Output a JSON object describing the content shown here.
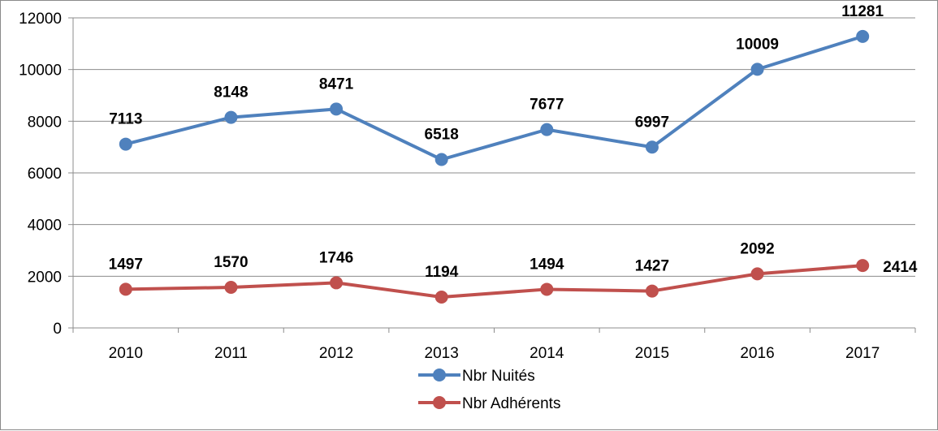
{
  "chart_data": {
    "type": "line",
    "categories": [
      "2010",
      "2011",
      "2012",
      "2013",
      "2014",
      "2015",
      "2016",
      "2017"
    ],
    "ylim": [
      0,
      12000
    ],
    "yticks": [
      0,
      2000,
      4000,
      6000,
      8000,
      10000,
      12000
    ],
    "grid": true,
    "legend_position": "bottom-center",
    "series": [
      {
        "name": "Nbr Nuités",
        "color": "#4f81bd",
        "values": [
          7113,
          8148,
          8471,
          6518,
          7677,
          6997,
          10009,
          11281
        ],
        "labels": [
          "7113",
          "8148",
          "8471",
          "6518",
          "7677",
          "6997",
          "10009",
          "11281"
        ]
      },
      {
        "name": "Nbr Adhérents",
        "color": "#c0504d",
        "values": [
          1497,
          1570,
          1746,
          1194,
          1494,
          1427,
          2092,
          2414
        ],
        "labels": [
          "1497",
          "1570",
          "1746",
          "1194",
          "1494",
          "1427",
          "2092",
          "2414"
        ]
      }
    ]
  }
}
